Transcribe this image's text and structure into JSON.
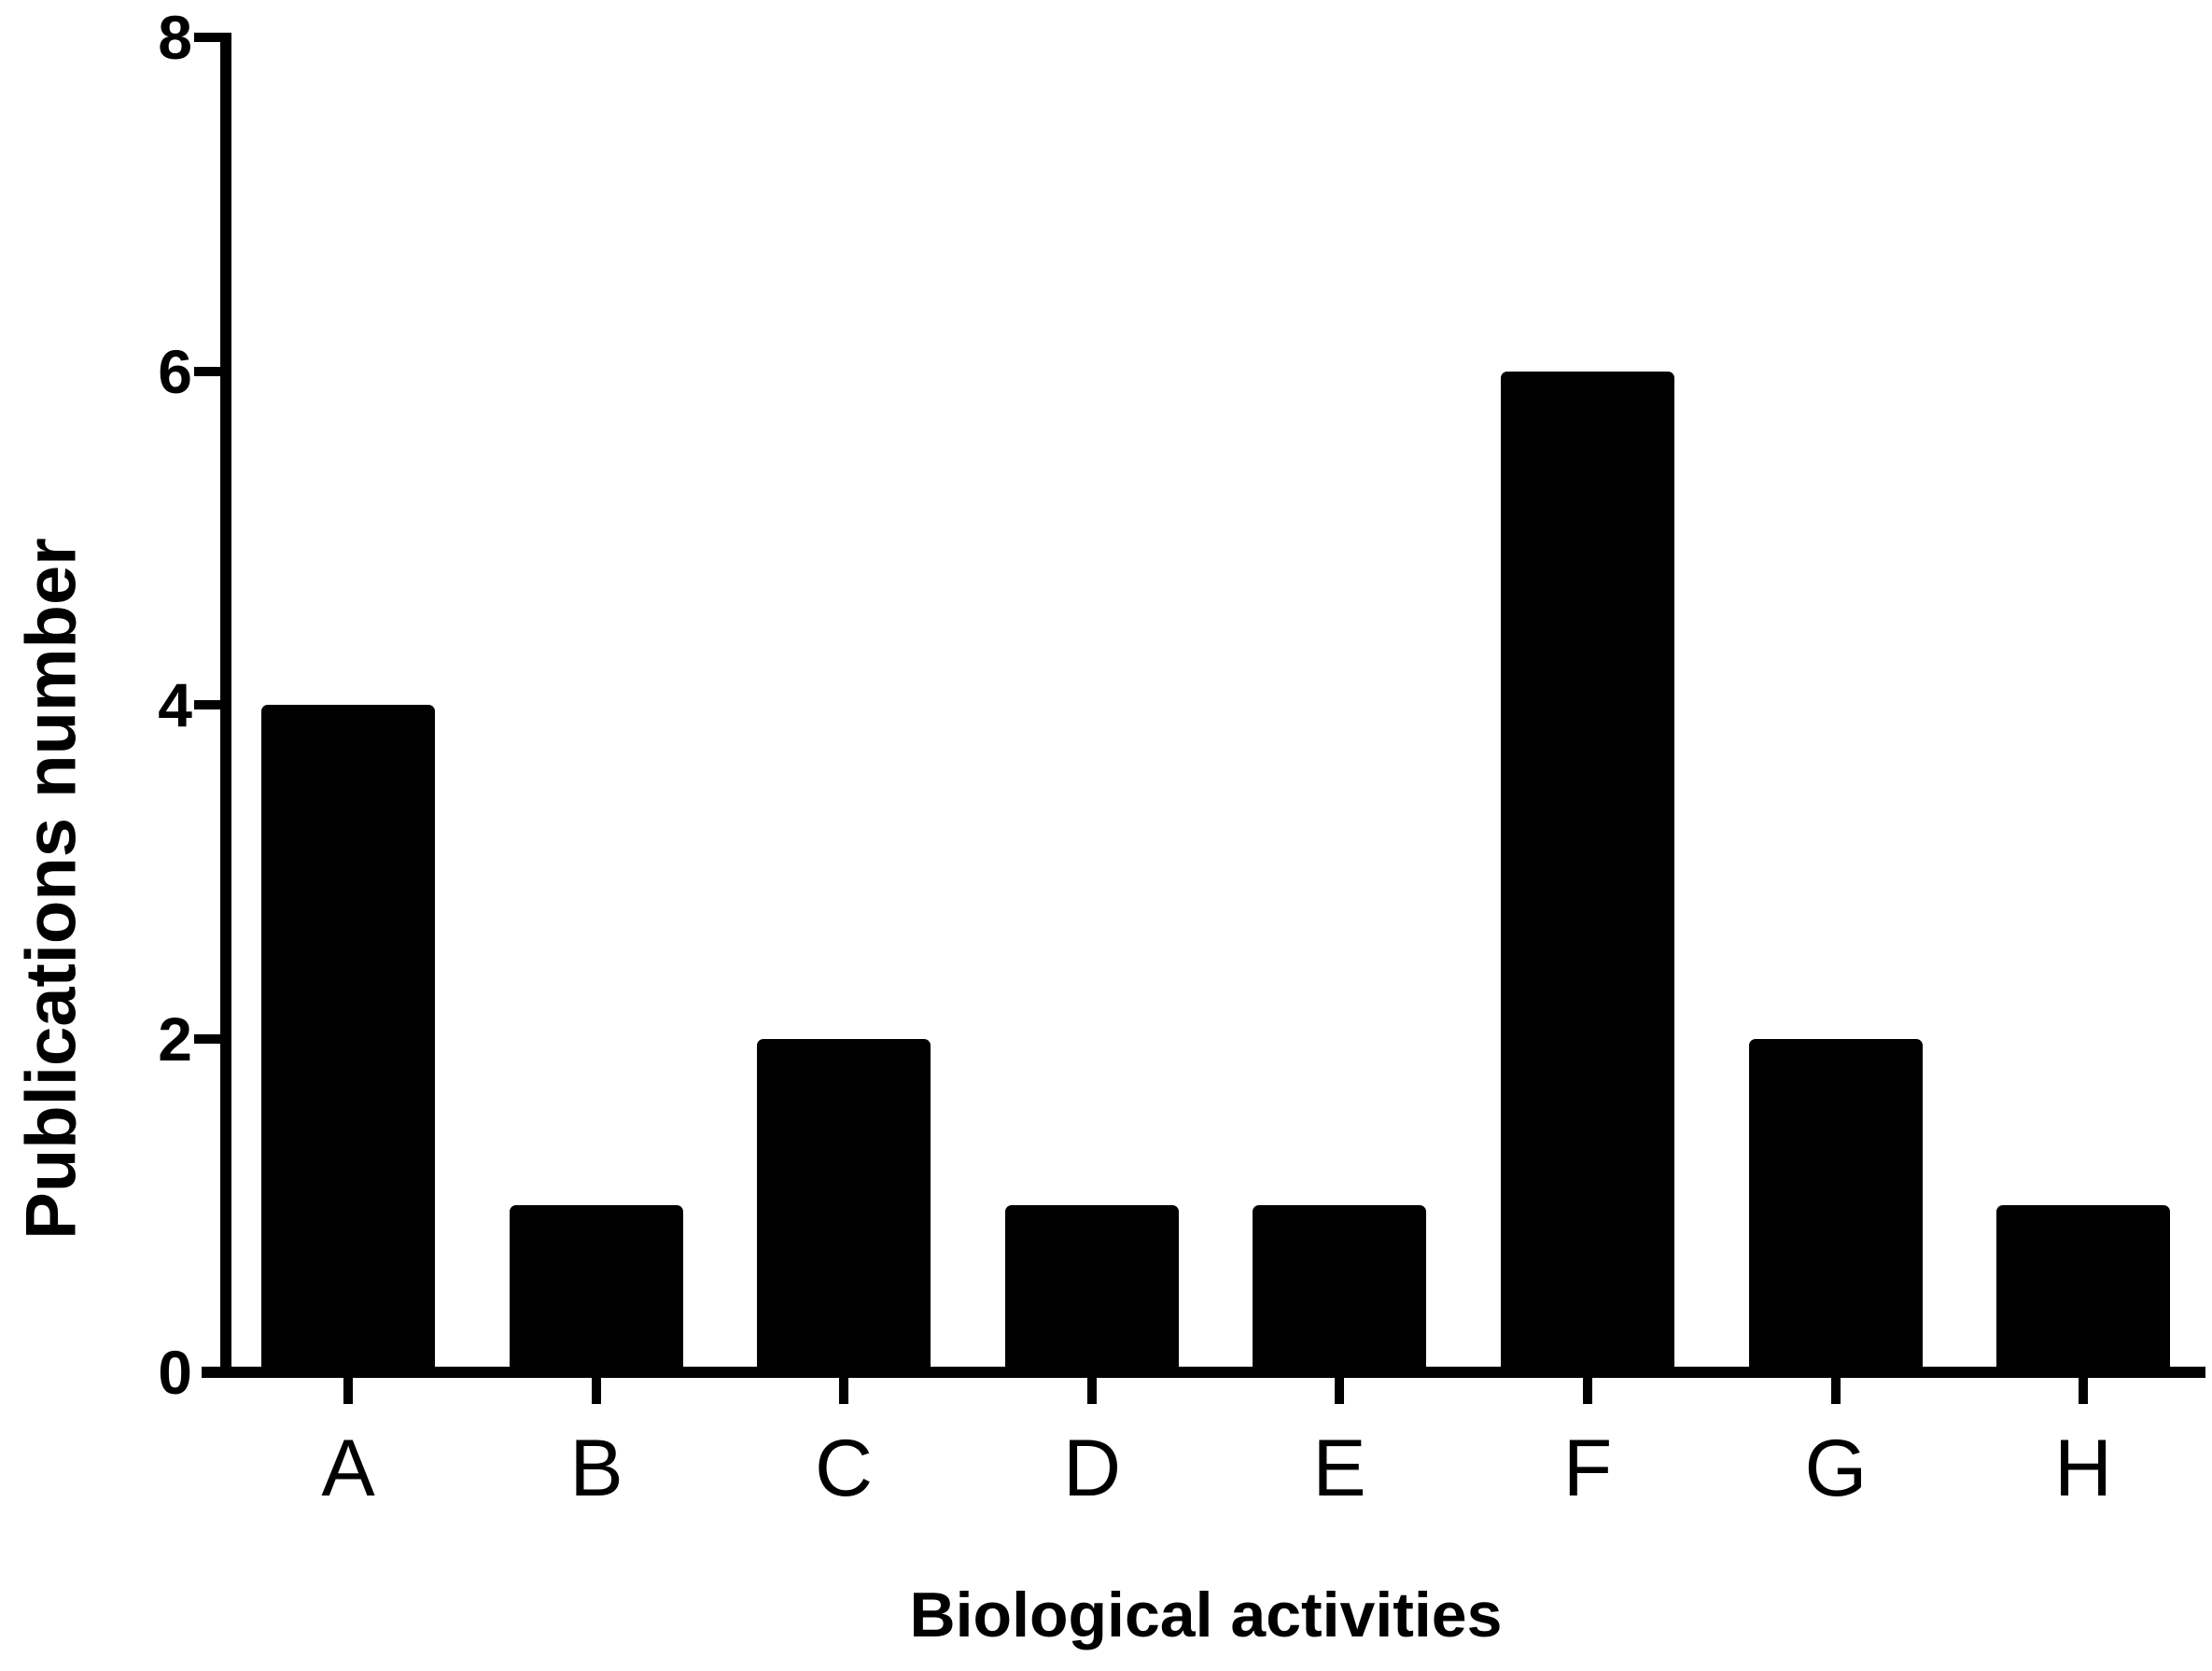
{
  "figure": {
    "background": "#ffffff",
    "ink": "#000000"
  },
  "chart_data": {
    "type": "bar",
    "title": "",
    "categories": [
      "A",
      "B",
      "C",
      "D",
      "E",
      "F",
      "G",
      "H"
    ],
    "values": [
      4,
      1,
      2,
      1,
      1,
      6,
      2,
      1
    ],
    "xlabel": "Biological activities",
    "ylabel": "Publications number",
    "ylim": [
      0,
      8
    ],
    "yticks": [
      0,
      2,
      4,
      6,
      8
    ],
    "bar_color": "#000000",
    "grid": false,
    "legend": "none"
  }
}
